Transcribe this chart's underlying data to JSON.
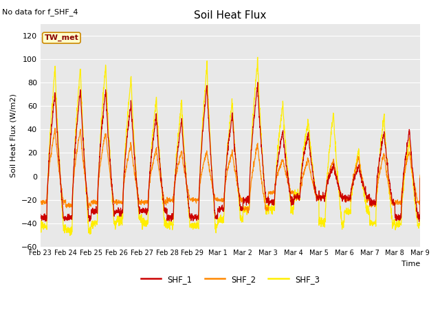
{
  "title": "Soil Heat Flux",
  "ylabel": "Soil Heat Flux (W/m2)",
  "xlabel": "Time",
  "top_label": "No data for f_SHF_4",
  "tw_met_label": "TW_met",
  "legend_labels": [
    "SHF_1",
    "SHF_2",
    "SHF_3"
  ],
  "colors": {
    "SHF_1": "#cc0000",
    "SHF_2": "#ff8800",
    "SHF_3": "#ffee00",
    "background": "#e8e8e8",
    "tw_met_box_bg": "#ffffcc",
    "tw_met_box_border": "#cc8800"
  },
  "ylim": [
    -60,
    130
  ],
  "yticks": [
    -60,
    -40,
    -20,
    0,
    20,
    40,
    60,
    80,
    100,
    120
  ],
  "date_labels": [
    "Feb 23",
    "Feb 24",
    "Feb 25",
    "Feb 26",
    "Feb 27",
    "Feb 28",
    "Feb 29",
    "Mar 1",
    "Mar 2",
    "Mar 3",
    "Mar 4",
    "Mar 5",
    "Mar 6",
    "Mar 7",
    "Mar 8",
    "Mar 9"
  ],
  "n_days": 15,
  "points_per_day": 144,
  "shf1_peaks": [
    73,
    75,
    75,
    64,
    52,
    49,
    78,
    54,
    78,
    40,
    38,
    10,
    9,
    38,
    40
  ],
  "shf1_troughs": [
    -35,
    -35,
    -30,
    -30,
    -30,
    -35,
    -35,
    -28,
    -20,
    -22,
    -18,
    -18,
    -18,
    -22,
    -35
  ],
  "shf2_peaks": [
    40,
    40,
    38,
    28,
    24,
    22,
    22,
    22,
    28,
    15,
    15,
    15,
    16,
    20,
    22
  ],
  "shf2_troughs": [
    -22,
    -25,
    -22,
    -22,
    -22,
    -20,
    -20,
    -20,
    -28,
    -14,
    -18,
    -18,
    -20,
    -24,
    -22
  ],
  "shf3_peaks": [
    93,
    94,
    96,
    86,
    68,
    65,
    96,
    65,
    100,
    63,
    47,
    55,
    21,
    52,
    32
  ],
  "shf3_troughs": [
    -43,
    -46,
    -40,
    -37,
    -40,
    -42,
    -42,
    -37,
    -28,
    -28,
    -17,
    -40,
    -30,
    -40,
    -42
  ]
}
